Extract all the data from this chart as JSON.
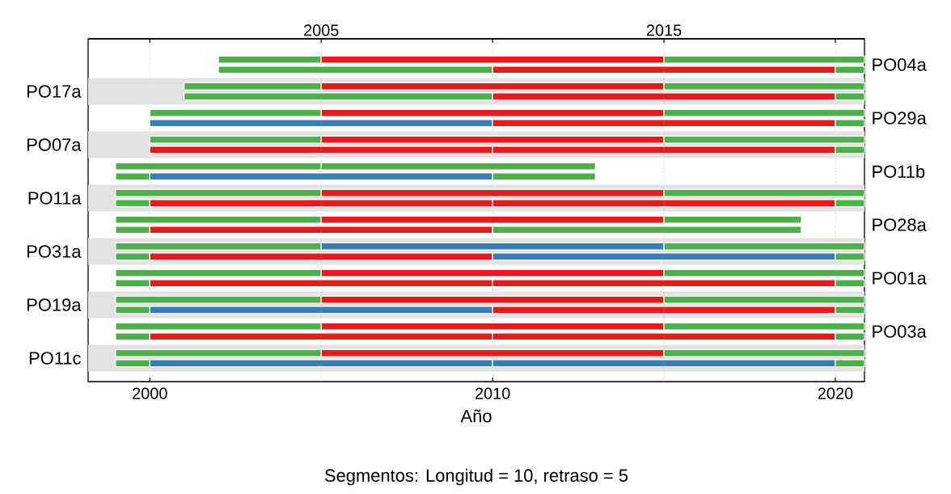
{
  "chart_data": {
    "type": "bar",
    "orientation": "horizontal",
    "categories": [
      "PO04a",
      "PO17a",
      "PO29a",
      "PO07a",
      "PO11b",
      "PO11a",
      "PO28a",
      "PO31a",
      "PO01a",
      "PO19a",
      "PO03a",
      "PO11c"
    ],
    "series": [
      {
        "base": [
          2002,
          2001,
          2000,
          2000,
          1999,
          1999,
          1999,
          1999,
          1999,
          1999,
          1999,
          1999
        ],
        "values": [
          3,
          4,
          5,
          5,
          6,
          6,
          6,
          6,
          6,
          6,
          6,
          6
        ],
        "colors": [
          "#4daf4a",
          "#4daf4a",
          "#4daf4a",
          "#4daf4a",
          "#4daf4a",
          "#4daf4a",
          "#4daf4a",
          "#4daf4a",
          "#4daf4a",
          "#4daf4a",
          "#4daf4a",
          "#4daf4a"
        ]
      },
      {
        "base": [
          2005,
          2005,
          2005,
          2005,
          2005,
          2005,
          2005,
          2005,
          2005,
          2005,
          2005,
          2005
        ],
        "values": [
          10,
          10,
          10,
          10,
          8,
          10,
          10,
          10,
          10,
          10,
          10,
          10
        ],
        "colors": [
          "#e41a1c",
          "#e41a1c",
          "#e41a1c",
          "#e41a1c",
          "#4daf4a",
          "#e41a1c",
          "#e41a1c",
          "#377eb8",
          "#e41a1c",
          "#e41a1c",
          "#e41a1c",
          "#e41a1c"
        ]
      },
      {
        "base": [
          2015,
          2015,
          2015,
          2015,
          null,
          2015,
          2015,
          2015,
          2015,
          2015,
          2015,
          2015
        ],
        "values": [
          5.85,
          5.85,
          5.85,
          5.85,
          null,
          5.85,
          4,
          5.85,
          5.85,
          5.85,
          5.85,
          5.85
        ],
        "colors": [
          "#4daf4a",
          "#4daf4a",
          "#4daf4a",
          "#4daf4a",
          null,
          "#4daf4a",
          "#4daf4a",
          "#4daf4a",
          "#4daf4a",
          "#4daf4a",
          "#4daf4a",
          "#4daf4a"
        ]
      },
      {
        "base": [
          null,
          null,
          null,
          null,
          1999,
          1999,
          1999,
          1999,
          1999,
          1999,
          1999,
          1999
        ],
        "values": [
          null,
          null,
          null,
          null,
          1,
          1,
          1,
          1,
          1,
          1,
          1,
          1
        ],
        "colors": [
          null,
          null,
          null,
          null,
          "#4daf4a",
          "#4daf4a",
          "#4daf4a",
          "#4daf4a",
          "#4daf4a",
          "#4daf4a",
          "#4daf4a",
          "#4daf4a"
        ]
      },
      {
        "base": [
          2002,
          2001,
          2000,
          2000,
          2000,
          2000,
          2000,
          2000,
          2000,
          2000,
          2000,
          2000
        ],
        "values": [
          8,
          9,
          10,
          10,
          10,
          10,
          10,
          10,
          10,
          10,
          10,
          10
        ],
        "colors": [
          "#4daf4a",
          "#4daf4a",
          "#377eb8",
          "#e41a1c",
          "#377eb8",
          "#e41a1c",
          "#e41a1c",
          "#e41a1c",
          "#e41a1c",
          "#377eb8",
          "#e41a1c",
          "#377eb8"
        ]
      },
      {
        "base": [
          2010,
          2010,
          2010,
          2010,
          2010,
          2010,
          2010,
          2010,
          2010,
          2010,
          2010,
          2010
        ],
        "values": [
          10,
          10,
          10,
          10,
          3,
          10,
          9,
          10,
          10,
          10,
          10,
          10
        ],
        "colors": [
          "#e41a1c",
          "#e41a1c",
          "#e41a1c",
          "#e41a1c",
          "#4daf4a",
          "#e41a1c",
          "#4daf4a",
          "#377eb8",
          "#e41a1c",
          "#e41a1c",
          "#e41a1c",
          "#377eb8"
        ]
      },
      {
        "base": [
          2020,
          2020,
          2020,
          2020,
          null,
          2020,
          null,
          2020,
          2020,
          2020,
          2020,
          2020
        ],
        "values": [
          0.85,
          0.85,
          0.85,
          0.85,
          null,
          0.85,
          null,
          0.85,
          0.85,
          0.85,
          0.85,
          0.85
        ],
        "colors": [
          "#4daf4a",
          "#4daf4a",
          "#4daf4a",
          "#4daf4a",
          null,
          "#4daf4a",
          null,
          "#4daf4a",
          "#4daf4a",
          "#4daf4a",
          "#4daf4a",
          "#4daf4a"
        ]
      }
    ],
    "xlim": [
      1998.2,
      2020.85
    ],
    "xticks": [
      2000,
      2010,
      2020
    ],
    "x2lim": [
      1998.2,
      2020.85
    ],
    "x2ticks": [
      2005,
      2015
    ],
    "grid": "x",
    "xlabel": "Año",
    "annotations": [
      "Segmentos: Longitud = 10, retraso = 5"
    ]
  }
}
